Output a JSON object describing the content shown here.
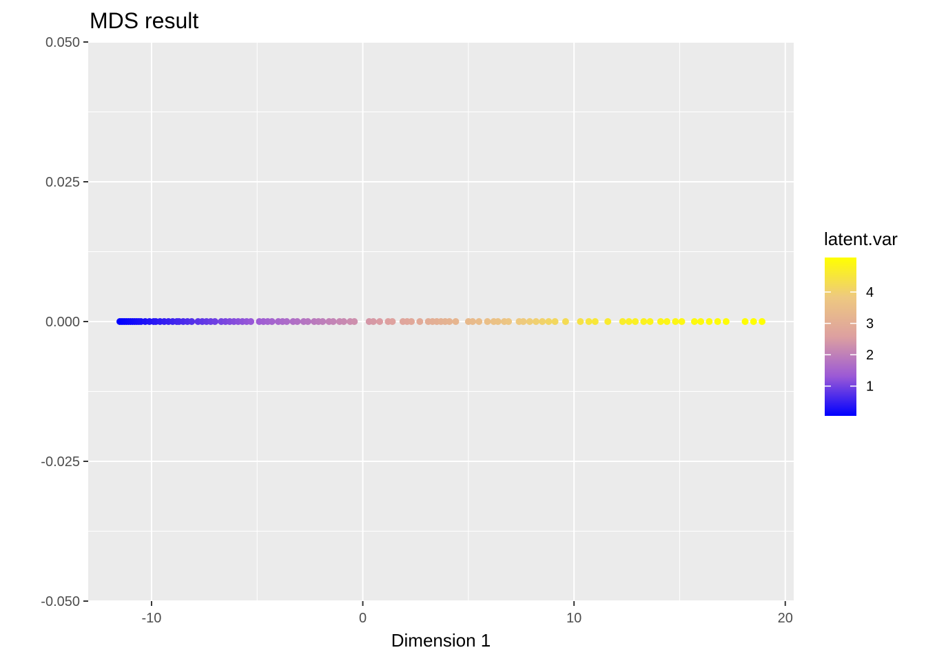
{
  "chart_data": {
    "type": "scatter",
    "title": "MDS result",
    "xlabel": "Dimension 1",
    "ylabel": "",
    "xlim": [
      -13,
      20.4
    ],
    "ylim": [
      -0.05,
      0.05
    ],
    "x_ticks": [
      -10,
      0,
      10,
      20
    ],
    "x_tick_labels": [
      "-10",
      "0",
      "10",
      "20"
    ],
    "y_ticks": [
      -0.05,
      -0.025,
      0,
      0.025,
      0.05
    ],
    "y_tick_labels": [
      "-0.050",
      "-0.025",
      "0.000",
      "0.025",
      "0.050"
    ],
    "grid": true,
    "background": "#ebebeb",
    "legend": {
      "title": "latent.var",
      "position": "right",
      "breaks": [
        1,
        2,
        3,
        4
      ],
      "break_labels": [
        "1",
        "2",
        "3",
        "4"
      ],
      "range": [
        0.05,
        5.1
      ],
      "colors": {
        "low": "#0000ff",
        "mid_low": "#9b59d6",
        "mid": "#dda0a0",
        "mid_high": "#eec980",
        "high": "#ffff00"
      }
    },
    "points": [
      {
        "x": -11.5,
        "y": 0,
        "c": 0.05
      },
      {
        "x": -11.4,
        "y": 0,
        "c": 0.07
      },
      {
        "x": -11.3,
        "y": 0,
        "c": 0.09
      },
      {
        "x": -11.2,
        "y": 0,
        "c": 0.11
      },
      {
        "x": -11.1,
        "y": 0,
        "c": 0.13
      },
      {
        "x": -11.0,
        "y": 0,
        "c": 0.15
      },
      {
        "x": -10.9,
        "y": 0,
        "c": 0.17
      },
      {
        "x": -10.8,
        "y": 0,
        "c": 0.19
      },
      {
        "x": -10.7,
        "y": 0,
        "c": 0.21
      },
      {
        "x": -10.6,
        "y": 0,
        "c": 0.23
      },
      {
        "x": -10.5,
        "y": 0,
        "c": 0.25
      },
      {
        "x": -10.3,
        "y": 0,
        "c": 0.29
      },
      {
        "x": -10.1,
        "y": 0,
        "c": 0.33
      },
      {
        "x": -9.9,
        "y": 0,
        "c": 0.37
      },
      {
        "x": -9.8,
        "y": 0,
        "c": 0.39
      },
      {
        "x": -9.6,
        "y": 0,
        "c": 0.43
      },
      {
        "x": -9.4,
        "y": 0,
        "c": 0.47
      },
      {
        "x": -9.2,
        "y": 0,
        "c": 0.51
      },
      {
        "x": -9.0,
        "y": 0,
        "c": 0.55
      },
      {
        "x": -8.8,
        "y": 0,
        "c": 0.59
      },
      {
        "x": -8.7,
        "y": 0,
        "c": 0.61
      },
      {
        "x": -8.5,
        "y": 0,
        "c": 0.65
      },
      {
        "x": -8.3,
        "y": 0,
        "c": 0.69
      },
      {
        "x": -8.1,
        "y": 0,
        "c": 0.73
      },
      {
        "x": -7.8,
        "y": 0,
        "c": 0.79
      },
      {
        "x": -7.6,
        "y": 0,
        "c": 0.83
      },
      {
        "x": -7.4,
        "y": 0,
        "c": 0.87
      },
      {
        "x": -7.2,
        "y": 0,
        "c": 0.91
      },
      {
        "x": -7.0,
        "y": 0,
        "c": 0.95
      },
      {
        "x": -6.7,
        "y": 0,
        "c": 1.01
      },
      {
        "x": -6.5,
        "y": 0,
        "c": 1.05
      },
      {
        "x": -6.3,
        "y": 0,
        "c": 1.09
      },
      {
        "x": -6.1,
        "y": 0,
        "c": 1.13
      },
      {
        "x": -5.9,
        "y": 0,
        "c": 1.17
      },
      {
        "x": -5.7,
        "y": 0,
        "c": 1.21
      },
      {
        "x": -5.5,
        "y": 0,
        "c": 1.25
      },
      {
        "x": -5.3,
        "y": 0,
        "c": 1.29
      },
      {
        "x": -4.9,
        "y": 0,
        "c": 1.37
      },
      {
        "x": -4.7,
        "y": 0,
        "c": 1.41
      },
      {
        "x": -4.5,
        "y": 0,
        "c": 1.45
      },
      {
        "x": -4.3,
        "y": 0,
        "c": 1.49
      },
      {
        "x": -4.0,
        "y": 0,
        "c": 1.55
      },
      {
        "x": -3.8,
        "y": 0,
        "c": 1.59
      },
      {
        "x": -3.6,
        "y": 0,
        "c": 1.63
      },
      {
        "x": -3.3,
        "y": 0,
        "c": 1.69
      },
      {
        "x": -3.1,
        "y": 0,
        "c": 1.73
      },
      {
        "x": -2.8,
        "y": 0,
        "c": 1.79
      },
      {
        "x": -2.6,
        "y": 0,
        "c": 1.83
      },
      {
        "x": -2.3,
        "y": 0,
        "c": 1.89
      },
      {
        "x": -2.1,
        "y": 0,
        "c": 1.93
      },
      {
        "x": -1.9,
        "y": 0,
        "c": 1.97
      },
      {
        "x": -1.6,
        "y": 0,
        "c": 2.03
      },
      {
        "x": -1.4,
        "y": 0,
        "c": 2.07
      },
      {
        "x": -1.1,
        "y": 0,
        "c": 2.13
      },
      {
        "x": -0.9,
        "y": 0,
        "c": 2.17
      },
      {
        "x": -0.6,
        "y": 0,
        "c": 2.23
      },
      {
        "x": -0.4,
        "y": 0,
        "c": 2.27
      },
      {
        "x": 0.3,
        "y": 0,
        "c": 2.41
      },
      {
        "x": 0.5,
        "y": 0,
        "c": 2.45
      },
      {
        "x": 0.8,
        "y": 0,
        "c": 2.51
      },
      {
        "x": 1.2,
        "y": 0,
        "c": 2.59
      },
      {
        "x": 1.4,
        "y": 0,
        "c": 2.63
      },
      {
        "x": 1.9,
        "y": 0,
        "c": 2.73
      },
      {
        "x": 2.1,
        "y": 0,
        "c": 2.77
      },
      {
        "x": 2.3,
        "y": 0,
        "c": 2.81
      },
      {
        "x": 2.7,
        "y": 0,
        "c": 2.89
      },
      {
        "x": 3.1,
        "y": 0,
        "c": 2.97
      },
      {
        "x": 3.3,
        "y": 0,
        "c": 3.01
      },
      {
        "x": 3.5,
        "y": 0,
        "c": 3.05
      },
      {
        "x": 3.7,
        "y": 0,
        "c": 3.09
      },
      {
        "x": 3.9,
        "y": 0,
        "c": 3.13
      },
      {
        "x": 4.1,
        "y": 0,
        "c": 3.17
      },
      {
        "x": 4.4,
        "y": 0,
        "c": 3.23
      },
      {
        "x": 5.0,
        "y": 0,
        "c": 3.35
      },
      {
        "x": 5.2,
        "y": 0,
        "c": 3.39
      },
      {
        "x": 5.5,
        "y": 0,
        "c": 3.45
      },
      {
        "x": 5.9,
        "y": 0,
        "c": 3.53
      },
      {
        "x": 6.2,
        "y": 0,
        "c": 3.59
      },
      {
        "x": 6.4,
        "y": 0,
        "c": 3.63
      },
      {
        "x": 6.7,
        "y": 0,
        "c": 3.69
      },
      {
        "x": 6.9,
        "y": 0,
        "c": 3.73
      },
      {
        "x": 7.4,
        "y": 0,
        "c": 3.83
      },
      {
        "x": 7.6,
        "y": 0,
        "c": 3.87
      },
      {
        "x": 7.9,
        "y": 0,
        "c": 3.93
      },
      {
        "x": 8.2,
        "y": 0,
        "c": 3.99
      },
      {
        "x": 8.5,
        "y": 0,
        "c": 4.05
      },
      {
        "x": 8.8,
        "y": 0,
        "c": 4.11
      },
      {
        "x": 9.1,
        "y": 0,
        "c": 4.17
      },
      {
        "x": 9.6,
        "y": 0,
        "c": 4.27
      },
      {
        "x": 10.3,
        "y": 0,
        "c": 4.41
      },
      {
        "x": 10.7,
        "y": 0,
        "c": 4.49
      },
      {
        "x": 11.0,
        "y": 0,
        "c": 4.55
      },
      {
        "x": 11.6,
        "y": 0,
        "c": 4.62
      },
      {
        "x": 12.3,
        "y": 0,
        "c": 4.68
      },
      {
        "x": 12.6,
        "y": 0,
        "c": 4.71
      },
      {
        "x": 12.9,
        "y": 0,
        "c": 4.74
      },
      {
        "x": 13.3,
        "y": 0,
        "c": 4.78
      },
      {
        "x": 13.6,
        "y": 0,
        "c": 4.81
      },
      {
        "x": 14.1,
        "y": 0,
        "c": 4.85
      },
      {
        "x": 14.4,
        "y": 0,
        "c": 4.87
      },
      {
        "x": 14.8,
        "y": 0,
        "c": 4.9
      },
      {
        "x": 15.1,
        "y": 0,
        "c": 4.92
      },
      {
        "x": 15.7,
        "y": 0,
        "c": 4.95
      },
      {
        "x": 16.0,
        "y": 0,
        "c": 4.97
      },
      {
        "x": 16.4,
        "y": 0,
        "c": 4.99
      },
      {
        "x": 16.8,
        "y": 0,
        "c": 5.01
      },
      {
        "x": 17.2,
        "y": 0,
        "c": 5.03
      },
      {
        "x": 18.1,
        "y": 0,
        "c": 5.06
      },
      {
        "x": 18.5,
        "y": 0,
        "c": 5.08
      },
      {
        "x": 18.9,
        "y": 0,
        "c": 5.1
      }
    ]
  }
}
